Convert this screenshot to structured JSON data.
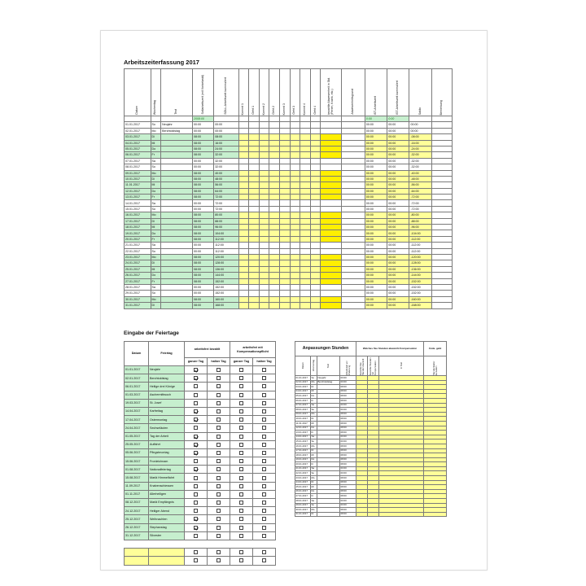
{
  "timesheet": {
    "title": "Arbeitszeiterfassung  2017",
    "headers": [
      "Datum",
      "Wochentag",
      "Text",
      "Sollarbeitszeit (mit Vorbelastd)",
      "SOLL-Arbeitszeit kummuliert",
      "Kommt 1",
      "Geht 1",
      "Kommt 2",
      "Geht 2",
      "Kommt 3",
      "Geht 3",
      "Kommt 4",
      "Geht 4",
      "bezahlte Abwesenheit in Std. (Ferien, Krank, etc.)",
      "Abwesenheitsgrund",
      "IST-Arbeitszeit",
      "IST-Arbeitszeit kummuliert",
      "Saldo",
      "Bemerkung"
    ],
    "totals": {
      "soll": "2008:00",
      "ist": "0:00",
      "ist_kum": "0:00"
    },
    "rows": [
      {
        "d": "01.01.2017",
        "w": "So",
        "t": "Neujahr",
        "s": "00:00",
        "k": "00:00",
        "i": "00:00",
        "ik": "00:00",
        "sa": "00:00"
      },
      {
        "d": "02.01.2017",
        "w": "Mo",
        "t": "Berchtoldstag",
        "s": "00:00",
        "k": "00:00",
        "i": "00:00",
        "ik": "00:00",
        "sa": "00:00"
      },
      {
        "d": "03.01.2017",
        "w": "Di",
        "t": "",
        "s": "08:00",
        "k": "08:00",
        "i": "00:00",
        "ik": "00:00",
        "sa": "-08:00"
      },
      {
        "d": "04.01.2017",
        "w": "Mi",
        "t": "",
        "s": "08:00",
        "k": "16:00",
        "i": "00:00",
        "ik": "00:00",
        "sa": "-16:00"
      },
      {
        "d": "05.01.2017",
        "w": "Do",
        "t": "",
        "s": "08:00",
        "k": "24:00",
        "i": "00:00",
        "ik": "00:00",
        "sa": "-24:00"
      },
      {
        "d": "06.01.2017",
        "w": "Fr",
        "t": "",
        "s": "08:00",
        "k": "32:00",
        "i": "00:00",
        "ik": "00:00",
        "sa": "-32:00"
      },
      {
        "d": "07.01.2017",
        "w": "Sa",
        "t": "",
        "s": "00:00",
        "k": "32:00",
        "i": "00:00",
        "ik": "00:00",
        "sa": "-32:00"
      },
      {
        "d": "08.01.2017",
        "w": "So",
        "t": "",
        "s": "00:00",
        "k": "32:00",
        "i": "00:00",
        "ik": "00:00",
        "sa": "-32:00"
      },
      {
        "d": "09.01.2017",
        "w": "Mo",
        "t": "",
        "s": "08:00",
        "k": "40:00",
        "i": "00:00",
        "ik": "00:00",
        "sa": "-40:00"
      },
      {
        "d": "10.01.2017",
        "w": "Di",
        "t": "",
        "s": "08:00",
        "k": "48:00",
        "i": "00:00",
        "ik": "00:00",
        "sa": "-48:00"
      },
      {
        "d": "11.01.2017",
        "w": "Mi",
        "t": "",
        "s": "08:00",
        "k": "56:00",
        "i": "00:00",
        "ik": "00:00",
        "sa": "-56:00"
      },
      {
        "d": "12.01.2017",
        "w": "Do",
        "t": "",
        "s": "08:00",
        "k": "64:00",
        "i": "00:00",
        "ik": "00:00",
        "sa": "-64:00"
      },
      {
        "d": "13.01.2017",
        "w": "Fr",
        "t": "",
        "s": "08:00",
        "k": "72:00",
        "i": "00:00",
        "ik": "00:00",
        "sa": "-72:00"
      },
      {
        "d": "14.01.2017",
        "w": "Sa",
        "t": "",
        "s": "00:00",
        "k": "72:00",
        "i": "00:00",
        "ik": "00:00",
        "sa": "-72:00"
      },
      {
        "d": "15.01.2017",
        "w": "So",
        "t": "",
        "s": "00:00",
        "k": "72:00",
        "i": "00:00",
        "ik": "00:00",
        "sa": "-72:00"
      },
      {
        "d": "16.01.2017",
        "w": "Mo",
        "t": "",
        "s": "08:00",
        "k": "80:00",
        "i": "00:00",
        "ik": "00:00",
        "sa": "-80:00"
      },
      {
        "d": "17.01.2017",
        "w": "Di",
        "t": "",
        "s": "08:00",
        "k": "88:00",
        "i": "00:00",
        "ik": "00:00",
        "sa": "-88:00"
      },
      {
        "d": "18.01.2017",
        "w": "Mi",
        "t": "",
        "s": "08:00",
        "k": "96:00",
        "i": "00:00",
        "ik": "00:00",
        "sa": "-96:00"
      },
      {
        "d": "19.01.2017",
        "w": "Do",
        "t": "",
        "s": "08:00",
        "k": "104:00",
        "i": "00:00",
        "ik": "00:00",
        "sa": "-104:00"
      },
      {
        "d": "20.01.2017",
        "w": "Fr",
        "t": "",
        "s": "08:00",
        "k": "112:00",
        "i": "00:00",
        "ik": "00:00",
        "sa": "-112:00"
      },
      {
        "d": "21.01.2017",
        "w": "Sa",
        "t": "",
        "s": "00:00",
        "k": "112:00",
        "i": "00:00",
        "ik": "00:00",
        "sa": "-112:00"
      },
      {
        "d": "22.01.2017",
        "w": "So",
        "t": "",
        "s": "00:00",
        "k": "112:00",
        "i": "00:00",
        "ik": "00:00",
        "sa": "-112:00"
      },
      {
        "d": "23.01.2017",
        "w": "Mo",
        "t": "",
        "s": "08:00",
        "k": "120:00",
        "i": "00:00",
        "ik": "00:00",
        "sa": "-120:00"
      },
      {
        "d": "24.01.2017",
        "w": "Di",
        "t": "",
        "s": "08:00",
        "k": "128:00",
        "i": "00:00",
        "ik": "00:00",
        "sa": "-128:00"
      },
      {
        "d": "25.01.2017",
        "w": "Mi",
        "t": "",
        "s": "08:00",
        "k": "136:00",
        "i": "00:00",
        "ik": "00:00",
        "sa": "-136:00"
      },
      {
        "d": "26.01.2017",
        "w": "Do",
        "t": "",
        "s": "08:00",
        "k": "144:00",
        "i": "00:00",
        "ik": "00:00",
        "sa": "-144:00"
      },
      {
        "d": "27.01.2017",
        "w": "Fr",
        "t": "",
        "s": "08:00",
        "k": "152:00",
        "i": "00:00",
        "ik": "00:00",
        "sa": "-152:00"
      },
      {
        "d": "28.01.2017",
        "w": "Sa",
        "t": "",
        "s": "00:00",
        "k": "152:00",
        "i": "00:00",
        "ik": "00:00",
        "sa": "-152:00"
      },
      {
        "d": "29.01.2017",
        "w": "So",
        "t": "",
        "s": "00:00",
        "k": "152:00",
        "i": "00:00",
        "ik": "00:00",
        "sa": "-152:00"
      },
      {
        "d": "30.01.2017",
        "w": "Mo",
        "t": "",
        "s": "08:00",
        "k": "160:00",
        "i": "00:00",
        "ik": "00:00",
        "sa": "-160:00"
      },
      {
        "d": "31.01.2017",
        "w": "Di",
        "t": "",
        "s": "08:00",
        "k": "168:00",
        "i": "00:00",
        "ik": "00:00",
        "sa": "-168:00"
      }
    ]
  },
  "holidays": {
    "title": "Eingabe der Feiertage",
    "head_group1": "arbeitsfrei bezahlt",
    "head_group2": "arbeitsfrei mit Kompensationspflicht",
    "head_datum": "Datum",
    "head_feiertag": "Feiertag",
    "head_ganzer": "ganzer Tag",
    "head_halber": "halber Tag",
    "rows": [
      {
        "d": "01.01.2017",
        "n": "Neujahr",
        "c": [
          true,
          false,
          false,
          false
        ]
      },
      {
        "d": "02.01.2017",
        "n": "Berchtoldstag",
        "c": [
          true,
          false,
          false,
          false
        ]
      },
      {
        "d": "06.01.2017",
        "n": "Heilige drei Könige",
        "c": [
          false,
          false,
          false,
          false
        ]
      },
      {
        "d": "01.03.2017",
        "n": "Aschermittwoch",
        "c": [
          false,
          false,
          false,
          false
        ]
      },
      {
        "d": "19.03.2017",
        "n": "St. Josef",
        "c": [
          false,
          false,
          false,
          false
        ]
      },
      {
        "d": "14.04.2017",
        "n": "Karfreitag",
        "c": [
          true,
          false,
          false,
          false
        ]
      },
      {
        "d": "17.04.2017",
        "n": "Ostermontag",
        "c": [
          true,
          false,
          false,
          false
        ]
      },
      {
        "d": "24.04.2017",
        "n": "Sechseläuten",
        "c": [
          false,
          false,
          false,
          false
        ]
      },
      {
        "d": "01.05.2017",
        "n": "Tag der Arbeit",
        "c": [
          true,
          false,
          false,
          false
        ]
      },
      {
        "d": "25.05.2017",
        "n": "Auffahrt",
        "c": [
          true,
          false,
          false,
          false
        ]
      },
      {
        "d": "05.06.2017",
        "n": "Pfingstmontag",
        "c": [
          true,
          false,
          false,
          false
        ]
      },
      {
        "d": "15.06.2017",
        "n": "Fronleichnam",
        "c": [
          false,
          false,
          false,
          false
        ]
      },
      {
        "d": "01.08.2017",
        "n": "Nationalfeiertag",
        "c": [
          true,
          false,
          false,
          false
        ]
      },
      {
        "d": "15.08.2017",
        "n": "Mariä Himmelfahrt",
        "c": [
          false,
          false,
          false,
          false
        ]
      },
      {
        "d": "11.09.2017",
        "n": "Knabenschiessen",
        "c": [
          false,
          false,
          false,
          false
        ]
      },
      {
        "d": "01.11.2017",
        "n": "Allerheiligen",
        "c": [
          false,
          false,
          false,
          false
        ]
      },
      {
        "d": "08.12.2017",
        "n": "Mariä Empfängnis",
        "c": [
          false,
          false,
          false,
          false
        ]
      },
      {
        "d": "24.12.2017",
        "n": "Heiliger Abend",
        "c": [
          false,
          false,
          false,
          false
        ]
      },
      {
        "d": "25.12.2017",
        "n": "Weihnachten",
        "c": [
          true,
          false,
          false,
          false
        ]
      },
      {
        "d": "26.12.2017",
        "n": "Stephanstag",
        "c": [
          true,
          false,
          false,
          false
        ]
      },
      {
        "d": "31.12.2017",
        "n": "Silvester",
        "c": [
          false,
          false,
          false,
          false
        ]
      }
    ]
  },
  "adjust": {
    "title": "Anpassungen Stunden",
    "group_title": "Welches fixe Stunden abweicht Kompensation",
    "group_title2": "Ände. gebt",
    "headers": [
      "Datum",
      "Wochentag",
      "Text",
      "Arbeitszeit vor Änderung",
      "bezahlte fixe Stunden bezahlt",
      "bezahlte Stunden mit Kompensation",
      "In Text",
      "Stundenfaktor kumuliert"
    ],
    "rows": [
      {
        "d": "01.01.2017",
        "w": "So",
        "t": "Neujahr",
        "v": "00:00"
      },
      {
        "d": "02.01.2017",
        "w": "Mo",
        "t": "Berchtoldstag",
        "v": "00:00"
      },
      {
        "d": "03.01.2017",
        "w": "Di",
        "t": "",
        "v": "08:00"
      },
      {
        "d": "04.01.2017",
        "w": "Mi",
        "t": "",
        "v": "08:00"
      },
      {
        "d": "05.01.2017",
        "w": "Do",
        "t": "",
        "v": "08:00"
      },
      {
        "d": "06.01.2017",
        "w": "Fr",
        "t": "",
        "v": "08:00"
      },
      {
        "d": "07.01.2017",
        "w": "Sa",
        "t": "",
        "v": "00:00"
      },
      {
        "d": "08.01.2017",
        "w": "So",
        "t": "",
        "v": "00:00"
      },
      {
        "d": "09.01.2017",
        "w": "Mo",
        "t": "",
        "v": "08:00"
      },
      {
        "d": "10.01.2017",
        "w": "Di",
        "t": "",
        "v": "08:00"
      },
      {
        "d": "11.01.2017",
        "w": "Mi",
        "t": "",
        "v": "08:00"
      },
      {
        "d": "12.01.2017",
        "w": "Do",
        "t": "",
        "v": "08:00"
      },
      {
        "d": "13.01.2017",
        "w": "Fr",
        "t": "",
        "v": "08:00"
      },
      {
        "d": "14.01.2017",
        "w": "Sa",
        "t": "",
        "v": "00:00"
      },
      {
        "d": "15.01.2017",
        "w": "So",
        "t": "",
        "v": "00:00"
      },
      {
        "d": "16.01.2017",
        "w": "Mo",
        "t": "",
        "v": "08:00"
      },
      {
        "d": "17.01.2017",
        "w": "Di",
        "t": "",
        "v": "08:00"
      },
      {
        "d": "18.01.2017",
        "w": "Mi",
        "t": "",
        "v": "08:00"
      },
      {
        "d": "19.01.2017",
        "w": "Do",
        "t": "",
        "v": "08:00"
      },
      {
        "d": "20.01.2017",
        "w": "Fr",
        "t": "",
        "v": "08:00"
      },
      {
        "d": "21.01.2017",
        "w": "Sa",
        "t": "",
        "v": "00:00"
      },
      {
        "d": "22.01.2017",
        "w": "So",
        "t": "",
        "v": "00:00"
      },
      {
        "d": "23.01.2017",
        "w": "Mo",
        "t": "",
        "v": "08:00"
      },
      {
        "d": "24.01.2017",
        "w": "Di",
        "t": "",
        "v": "08:00"
      },
      {
        "d": "25.01.2017",
        "w": "Mi",
        "t": "",
        "v": "08:00"
      },
      {
        "d": "26.01.2017",
        "w": "Do",
        "t": "",
        "v": "08:00"
      },
      {
        "d": "27.01.2017",
        "w": "Fr",
        "t": "",
        "v": "08:00"
      },
      {
        "d": "28.01.2017",
        "w": "Sa",
        "t": "",
        "v": "00:00"
      },
      {
        "d": "29.01.2017",
        "w": "So",
        "t": "",
        "v": "00:00"
      },
      {
        "d": "30.01.2017",
        "w": "Mo",
        "t": "",
        "v": "08:00"
      },
      {
        "d": "31.01.2017",
        "w": "Di",
        "t": "",
        "v": "08:00"
      }
    ]
  },
  "colors": {
    "green": "#c6efce",
    "yellow": "#ffff99",
    "highlight": "#ffef00"
  }
}
